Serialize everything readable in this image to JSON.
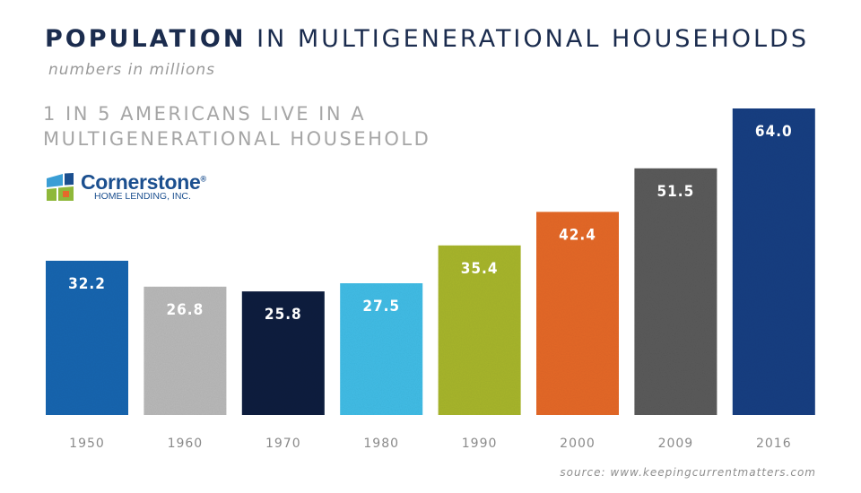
{
  "header": {
    "title_bold": "POPULATION",
    "title_rest": "IN MULTIGENERATIONAL HOUSEHOLDS",
    "subtitle": "numbers in millions",
    "headline_line1": "1 IN 5 AMERICANS LIVE IN A",
    "headline_line2": "MULTIGENERATIONAL HOUSEHOLD"
  },
  "logo": {
    "name": "Cornerstone",
    "registered": "®",
    "sub": "HOME LENDING, INC.",
    "icon": "house-window-logo-icon"
  },
  "source": "source: www.keepingcurrentmatters.com",
  "chart_data": {
    "type": "bar",
    "title": "POPULATION IN MULTIGENERATIONAL HOUSEHOLDS",
    "subtitle": "numbers in millions",
    "categories": [
      "1950",
      "1960",
      "1970",
      "1980",
      "1990",
      "2000",
      "2009",
      "2016"
    ],
    "values": [
      32.2,
      26.8,
      25.8,
      27.5,
      35.4,
      42.4,
      51.5,
      64.0
    ],
    "value_labels": [
      "32.2",
      "26.8",
      "25.8",
      "27.5",
      "35.4",
      "42.4",
      "51.5",
      "64.0"
    ],
    "colors": [
      "#1f66b0",
      "#b9b9b9",
      "#18243f",
      "#42bde6",
      "#a8b62d",
      "#e5692b",
      "#5b5b5b",
      "#1e3f82"
    ],
    "xlabel": "",
    "ylabel": "",
    "ylim": [
      0,
      64.0
    ],
    "grid": false,
    "legend": "none"
  }
}
